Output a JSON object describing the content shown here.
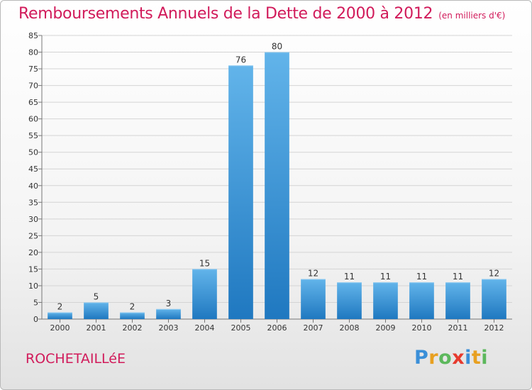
{
  "title": "Remboursements Annuels de la Dette de 2000 à 2012",
  "subtitle": "(en milliers d'€)",
  "commune": "ROCHETAILLéE",
  "brand": {
    "letters": [
      "P",
      "r",
      "o",
      "x",
      "i",
      "t",
      "i"
    ],
    "colors": [
      "#3a8fd8",
      "#e8a020",
      "#5cb85c",
      "#e63a2e",
      "#3a8fd8",
      "#e8a020",
      "#5cb85c"
    ]
  },
  "colors": {
    "bar_light": "#62b4ea",
    "bar_dark": "#1f78c0",
    "title": "#d11a5a"
  },
  "chart_data": {
    "type": "bar",
    "categories": [
      "2000",
      "2001",
      "2002",
      "2003",
      "2004",
      "2005",
      "2006",
      "2007",
      "2008",
      "2009",
      "2010",
      "2011",
      "2012"
    ],
    "values": [
      2,
      5,
      2,
      3,
      15,
      76,
      80,
      12,
      11,
      11,
      11,
      11,
      12
    ],
    "ylim": [
      0,
      85
    ],
    "yticks": [
      0,
      5,
      10,
      15,
      20,
      25,
      30,
      35,
      40,
      45,
      50,
      55,
      60,
      65,
      70,
      75,
      80,
      85
    ],
    "grid": true,
    "data_labels": true
  }
}
